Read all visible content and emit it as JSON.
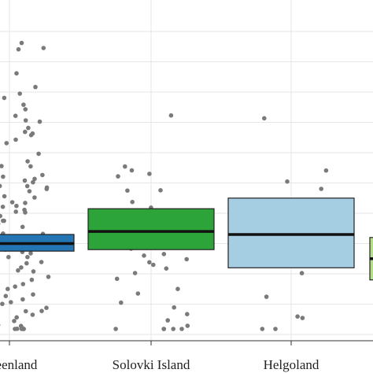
{
  "chart_data": {
    "type": "boxplot",
    "title": "",
    "xlabel": "",
    "ylabel": "",
    "ylim": [
      0,
      100
    ],
    "grid": true,
    "categories": [
      "Greenland",
      "Solovki Island",
      "Helgoland",
      ""
    ],
    "boxes": [
      {
        "category": "Greenland",
        "q1": 27.5,
        "median": 30,
        "q3": 33,
        "color": "#2475b4"
      },
      {
        "category": "Solovki Island",
        "q1": 28,
        "median": 34,
        "q3": 41.5,
        "color": "#2ca43a"
      },
      {
        "category": "Helgoland",
        "q1": 22,
        "median": 33,
        "q3": 45,
        "color": "#a6cee3"
      },
      {
        "category": "",
        "q1": 18,
        "median": 25,
        "q3": 32,
        "color": "#b2df8a"
      }
    ],
    "points": [
      {
        "category": "Greenland",
        "y": [
          96,
          80,
          76,
          73,
          71,
          68,
          66,
          64,
          62,
          60,
          58,
          57,
          55,
          53,
          52,
          51,
          50,
          49,
          48,
          47,
          46,
          45,
          44,
          43,
          42,
          41,
          40,
          39,
          38,
          37,
          36,
          35,
          34,
          33,
          32,
          31,
          30,
          29,
          28,
          27,
          26,
          25,
          24,
          23,
          22,
          21,
          20,
          19,
          18,
          17,
          16,
          15,
          14,
          13,
          12,
          11,
          10,
          9,
          8,
          7,
          6,
          5,
          4,
          3,
          2,
          2,
          1,
          1,
          1,
          1,
          3,
          5,
          7,
          9,
          11,
          13,
          15,
          17,
          19,
          21,
          23,
          25,
          27,
          29,
          31,
          33,
          35,
          37,
          39,
          41,
          43,
          45,
          47,
          49,
          51,
          53,
          55,
          59,
          63,
          67,
          72,
          78,
          86,
          95,
          94,
          70,
          64,
          56,
          48,
          42,
          36,
          30,
          24,
          18,
          12,
          6,
          2,
          4,
          8,
          14,
          20,
          26,
          32,
          38,
          44,
          50,
          58,
          66,
          74,
          82
        ]
      },
      {
        "category": "Solovki Island",
        "y": [
          72,
          55,
          54,
          53,
          52,
          48,
          47,
          44,
          42,
          40,
          38,
          36,
          34,
          32,
          31,
          30,
          29,
          28,
          27,
          26,
          25,
          24,
          23,
          22,
          20,
          18,
          15,
          13,
          11,
          9,
          7,
          5,
          3,
          1,
          1,
          1,
          1,
          2
        ]
      },
      {
        "category": "Helgoland",
        "y": [
          71,
          54,
          50,
          48,
          43,
          40,
          37,
          35,
          30,
          26,
          20,
          12,
          6,
          5,
          1,
          1
        ]
      },
      {
        "category": "",
        "y": [
          30,
          22,
          18
        ]
      }
    ]
  },
  "colors": {
    "median": "#111111",
    "box_border": "#222222",
    "points": "#7a7a7a",
    "grid": "#e6e6e6",
    "axis": "#333333"
  }
}
